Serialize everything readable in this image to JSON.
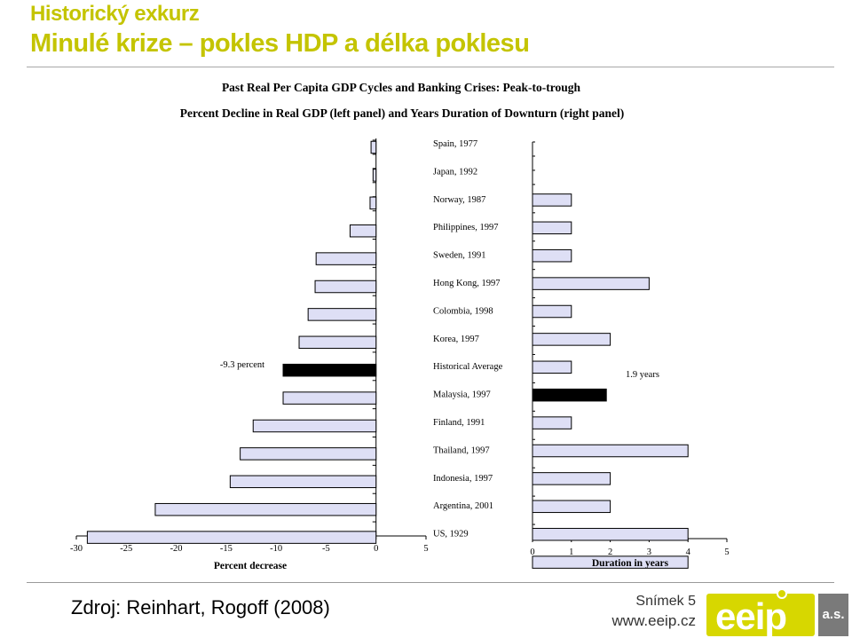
{
  "slide": {
    "title_line1": "Historický exkurz",
    "title_line2": "Minulé krize – pokles HDP a délka poklesu",
    "source": "Zdroj: Reinhart, Rogoff (2008)",
    "slide_number": "Snímek 5",
    "website": "www.eeip.cz",
    "logo_text": "eeip",
    "logo_suffix": "a.s.",
    "title_color": "#c4c400",
    "logo_color": "#d7d700"
  },
  "chart_data": {
    "type": "bar",
    "title": "Past Real Per Capita GDP Cycles and Banking Crises: Peak-to-trough",
    "subtitle": "Percent Decline in Real GDP (left panel) and Years Duration of Downturn (right panel)",
    "categories": [
      "Spain, 1977",
      "Japan, 1992",
      "Norway, 1987",
      "Philippines, 1997",
      "Sweden, 1991",
      "Hong Kong, 1997",
      "Colombia, 1998",
      "Korea, 1997",
      "Historical Average",
      "Malaysia, 1997",
      "Finland, 1991",
      "Thailand, 1997",
      "Indonesia, 1997",
      "Argentina, 2001",
      "US, 1929"
    ],
    "panels": [
      {
        "name": "left",
        "xlabel": "Percent decrease",
        "values": [
          -0.5,
          -0.3,
          -0.6,
          -2.6,
          -6.0,
          -6.1,
          -6.8,
          -7.7,
          -9.3,
          -9.3,
          -12.3,
          -13.6,
          -14.6,
          -22.1,
          -28.9
        ],
        "xlim": [
          -30,
          5
        ],
        "ticks": [
          "-30",
          "-25",
          "-20",
          "-15",
          "-10",
          "-5",
          "0",
          "5"
        ],
        "average_label": "-9.3 percent"
      },
      {
        "name": "right",
        "xlabel": "Duration in years",
        "values": [
          0,
          1,
          1,
          1,
          3,
          1,
          2,
          1,
          1.9,
          1,
          4,
          2,
          2,
          4,
          4
        ],
        "xlim": [
          0,
          5
        ],
        "ticks": [
          "0",
          "1",
          "2",
          "3",
          "4",
          "5"
        ],
        "average_label": "1.9 years"
      }
    ],
    "highlight_category": "Historical Average",
    "bar_color": "#dedff5",
    "highlight_color": "#000000",
    "grid": false,
    "legend": "none"
  }
}
